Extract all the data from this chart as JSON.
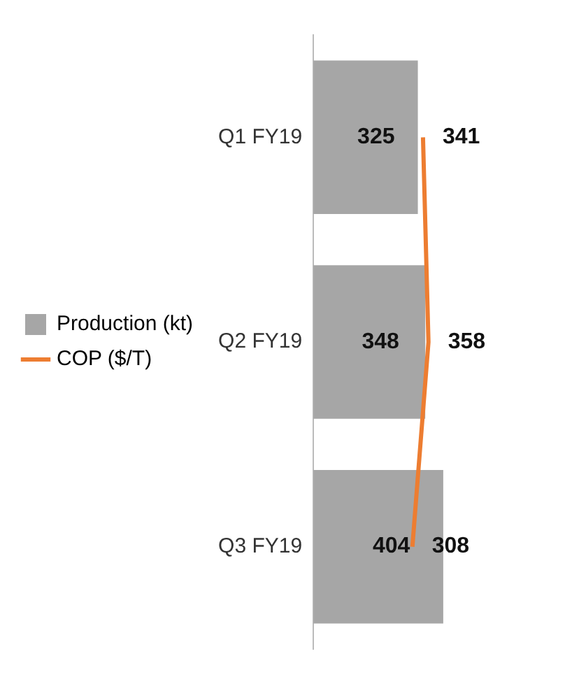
{
  "chart_data": {
    "type": "bar",
    "orientation": "horizontal",
    "categories": [
      "Q1 FY19",
      "Q2 FY19",
      "Q3 FY19"
    ],
    "series": [
      {
        "name": "Production (kt)",
        "color": "#a6a6a6",
        "values": [
          325,
          348,
          404
        ]
      },
      {
        "name": "COP ($/T)",
        "type": "line",
        "color": "#ed7d31",
        "values": [
          341,
          358,
          308
        ]
      }
    ],
    "data_labels": true,
    "grid": false,
    "legend": "left",
    "marker": "none"
  }
}
